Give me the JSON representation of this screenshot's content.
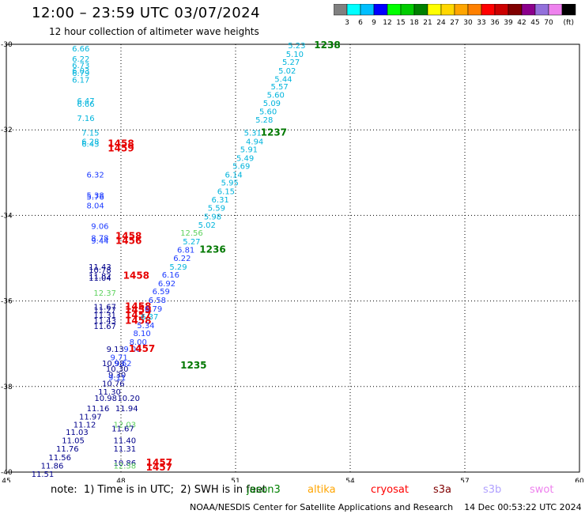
{
  "header": {
    "title": "12:00 – 23:59 UTC 03/07/2024",
    "subtitle": "12 hour collection of altimeter wave heights"
  },
  "colorbar": {
    "ticks": [
      "3",
      "6",
      "9",
      "12",
      "15",
      "18",
      "21",
      "24",
      "27",
      "30",
      "33",
      "36",
      "39",
      "42",
      "45",
      "70"
    ],
    "unit": "(ft)",
    "colors": [
      "#808080",
      "#00ffff",
      "#00bfff",
      "#0000ff",
      "#00ff00",
      "#00cc00",
      "#008000",
      "#ffff00",
      "#ffd700",
      "#ffa500",
      "#ff8000",
      "#ff0000",
      "#cc0000",
      "#800000",
      "#8b008b",
      "#9370db",
      "#ee82ee",
      "#000000"
    ]
  },
  "axes": {
    "x_ticks": [
      "45",
      "48",
      "51",
      "54",
      "57",
      "60"
    ],
    "y_ticks": [
      "-30",
      "-32",
      "-34",
      "-36",
      "-38",
      "-40"
    ]
  },
  "colors": {
    "navy": "#00008b",
    "blue": "#1e3cff",
    "cyan": "#00b4dc",
    "ltgreen": "#5fd25f",
    "dkgreen": "#007800",
    "red": "#e60000"
  },
  "observations": [
    {
      "text": "6.66",
      "lon": 46.95,
      "lat": -30.09,
      "color": "cyan"
    },
    {
      "text": "6.22",
      "lon": 46.95,
      "lat": -30.33,
      "color": "cyan"
    },
    {
      "text": "6.73",
      "lon": 46.95,
      "lat": -30.48,
      "color": "cyan"
    },
    {
      "text": "6.03",
      "lon": 46.95,
      "lat": -30.61,
      "color": "cyan"
    },
    {
      "text": "6.79",
      "lon": 46.95,
      "lat": -30.67,
      "color": "cyan"
    },
    {
      "text": "6.17",
      "lon": 46.95,
      "lat": -30.82,
      "color": "cyan"
    },
    {
      "text": "6.47",
      "lon": 47.08,
      "lat": -31.31,
      "color": "cyan"
    },
    {
      "text": "6.66",
      "lon": 47.08,
      "lat": -31.39,
      "color": "cyan"
    },
    {
      "text": "7.16",
      "lon": 47.08,
      "lat": -31.72,
      "color": "cyan"
    },
    {
      "text": "7.15",
      "lon": 47.2,
      "lat": -32.06,
      "color": "cyan"
    },
    {
      "text": "6.28",
      "lon": 47.2,
      "lat": -32.26,
      "color": "cyan"
    },
    {
      "text": "6.43",
      "lon": 47.2,
      "lat": -32.32,
      "color": "cyan"
    },
    {
      "text": "1458",
      "lon": 48.0,
      "lat": -32.32,
      "color": "red",
      "kind": "pass"
    },
    {
      "text": "1459",
      "lon": 48.0,
      "lat": -32.43,
      "color": "red",
      "kind": "pass"
    },
    {
      "text": "6.32",
      "lon": 47.33,
      "lat": -33.04,
      "color": "blue"
    },
    {
      "text": "5.38",
      "lon": 47.33,
      "lat": -33.52,
      "color": "blue"
    },
    {
      "text": "5.76",
      "lon": 47.33,
      "lat": -33.56,
      "color": "blue"
    },
    {
      "text": "8.04",
      "lon": 47.33,
      "lat": -33.76,
      "color": "blue"
    },
    {
      "text": "9.06",
      "lon": 47.45,
      "lat": -34.24,
      "color": "blue"
    },
    {
      "text": "8.78",
      "lon": 47.45,
      "lat": -34.52,
      "color": "blue"
    },
    {
      "text": "9.44",
      "lon": 47.45,
      "lat": -34.58,
      "color": "blue"
    },
    {
      "text": "1458",
      "lon": 48.2,
      "lat": -34.48,
      "color": "red",
      "kind": "pass"
    },
    {
      "text": "1456",
      "lon": 48.2,
      "lat": -34.59,
      "color": "red",
      "kind": "pass"
    },
    {
      "text": "11.43",
      "lon": 47.45,
      "lat": -35.19,
      "color": "navy"
    },
    {
      "text": "10.78",
      "lon": 47.45,
      "lat": -35.27,
      "color": "navy"
    },
    {
      "text": "11.82",
      "lon": 47.45,
      "lat": -35.41,
      "color": "navy"
    },
    {
      "text": "11.04",
      "lon": 47.45,
      "lat": -35.45,
      "color": "navy"
    },
    {
      "text": "1458",
      "lon": 48.4,
      "lat": -35.41,
      "color": "red",
      "kind": "pass"
    },
    {
      "text": "12.37",
      "lon": 47.58,
      "lat": -35.8,
      "color": "ltgreen"
    },
    {
      "text": "11.67",
      "lon": 47.58,
      "lat": -36.13,
      "color": "navy"
    },
    {
      "text": "11.27",
      "lon": 47.58,
      "lat": -36.2,
      "color": "navy"
    },
    {
      "text": "11.31",
      "lon": 47.58,
      "lat": -36.32,
      "color": "navy"
    },
    {
      "text": "11.43",
      "lon": 47.58,
      "lat": -36.45,
      "color": "navy"
    },
    {
      "text": "11.67",
      "lon": 47.58,
      "lat": -36.58,
      "color": "navy"
    },
    {
      "text": "1458",
      "lon": 48.45,
      "lat": -36.13,
      "color": "red",
      "kind": "pass"
    },
    {
      "text": "1459",
      "lon": 48.45,
      "lat": -36.21,
      "color": "red",
      "kind": "pass"
    },
    {
      "text": "1457",
      "lon": 48.45,
      "lat": -36.33,
      "color": "red",
      "kind": "pass"
    },
    {
      "text": "1458",
      "lon": 48.45,
      "lat": -36.46,
      "color": "red",
      "kind": "pass"
    },
    {
      "text": "9.13",
      "lon": 47.85,
      "lat": -37.12,
      "color": "navy"
    },
    {
      "text": "9.00",
      "lon": 48.3,
      "lat": -37.12,
      "color": "blue"
    },
    {
      "text": "1457",
      "lon": 48.55,
      "lat": -37.12,
      "color": "red",
      "kind": "pass"
    },
    {
      "text": "9.71",
      "lon": 47.95,
      "lat": -37.31,
      "color": "blue"
    },
    {
      "text": "10.98",
      "lon": 47.8,
      "lat": -37.45,
      "color": "navy"
    },
    {
      "text": "9.62",
      "lon": 48.05,
      "lat": -37.45,
      "color": "blue"
    },
    {
      "text": "10.30",
      "lon": 47.9,
      "lat": -37.58,
      "color": "navy"
    },
    {
      "text": "9.30",
      "lon": 47.9,
      "lat": -37.72,
      "color": "navy"
    },
    {
      "text": "9.11",
      "lon": 47.9,
      "lat": -37.78,
      "color": "blue"
    },
    {
      "text": "10.76",
      "lon": 47.8,
      "lat": -37.92,
      "color": "navy"
    },
    {
      "text": "1235",
      "lon": 49.9,
      "lat": -37.5,
      "color": "dkgreen",
      "kind": "pass"
    },
    {
      "text": "11.30",
      "lon": 47.7,
      "lat": -38.11,
      "color": "navy"
    },
    {
      "text": "10.98",
      "lon": 47.6,
      "lat": -38.26,
      "color": "navy"
    },
    {
      "text": "10.20",
      "lon": 48.2,
      "lat": -38.26,
      "color": "navy"
    },
    {
      "text": "11.16",
      "lon": 47.4,
      "lat": -38.5,
      "color": "navy"
    },
    {
      "text": "11.94",
      "lon": 48.15,
      "lat": -38.5,
      "color": "navy"
    },
    {
      "text": "11.97",
      "lon": 47.2,
      "lat": -38.7,
      "color": "navy"
    },
    {
      "text": "11.12",
      "lon": 47.05,
      "lat": -38.88,
      "color": "navy"
    },
    {
      "text": "12.03",
      "lon": 48.1,
      "lat": -38.88,
      "color": "ltgreen"
    },
    {
      "text": "11.67",
      "lon": 48.05,
      "lat": -38.97,
      "color": "navy"
    },
    {
      "text": "11.03",
      "lon": 46.85,
      "lat": -39.06,
      "color": "navy"
    },
    {
      "text": "11.05",
      "lon": 46.75,
      "lat": -39.25,
      "color": "navy"
    },
    {
      "text": "11.40",
      "lon": 48.1,
      "lat": -39.25,
      "color": "navy"
    },
    {
      "text": "11.76",
      "lon": 46.6,
      "lat": -39.45,
      "color": "navy"
    },
    {
      "text": "11.31",
      "lon": 48.1,
      "lat": -39.45,
      "color": "navy"
    },
    {
      "text": "11.56",
      "lon": 46.4,
      "lat": -39.65,
      "color": "navy"
    },
    {
      "text": "11.86",
      "lon": 46.2,
      "lat": -39.84,
      "color": "navy"
    },
    {
      "text": "10.86",
      "lon": 48.1,
      "lat": -39.78,
      "color": "navy"
    },
    {
      "text": "12.38",
      "lon": 48.1,
      "lat": -39.84,
      "color": "ltgreen"
    },
    {
      "text": "1457",
      "lon": 49.0,
      "lat": -39.78,
      "color": "red",
      "kind": "pass"
    },
    {
      "text": "1457",
      "lon": 49.0,
      "lat": -39.89,
      "color": "red",
      "kind": "pass"
    },
    {
      "text": "11.51",
      "lon": 45.95,
      "lat": -40.04,
      "color": "navy"
    },
    {
      "text": "5.23",
      "lon": 52.6,
      "lat": -30.02,
      "color": "cyan"
    },
    {
      "text": "1238",
      "lon": 53.4,
      "lat": -30.02,
      "color": "dkgreen",
      "kind": "pass"
    },
    {
      "text": "5.10",
      "lon": 52.55,
      "lat": -30.22,
      "color": "cyan"
    },
    {
      "text": "5.27",
      "lon": 52.45,
      "lat": -30.41,
      "color": "cyan"
    },
    {
      "text": "5.02",
      "lon": 52.35,
      "lat": -30.61,
      "color": "cyan"
    },
    {
      "text": "5.44",
      "lon": 52.25,
      "lat": -30.8,
      "color": "cyan"
    },
    {
      "text": "5.57",
      "lon": 52.15,
      "lat": -30.98,
      "color": "cyan"
    },
    {
      "text": "5.60",
      "lon": 52.05,
      "lat": -31.17,
      "color": "cyan"
    },
    {
      "text": "5.09",
      "lon": 51.95,
      "lat": -31.37,
      "color": "cyan"
    },
    {
      "text": "5.60",
      "lon": 51.85,
      "lat": -31.56,
      "color": "cyan"
    },
    {
      "text": "5.28",
      "lon": 51.75,
      "lat": -31.76,
      "color": "cyan"
    },
    {
      "text": "5.31",
      "lon": 51.45,
      "lat": -32.06,
      "color": "cyan"
    },
    {
      "text": "1237",
      "lon": 52.0,
      "lat": -32.06,
      "color": "dkgreen",
      "kind": "pass"
    },
    {
      "text": "4.94",
      "lon": 51.5,
      "lat": -32.26,
      "color": "cyan"
    },
    {
      "text": "5.91",
      "lon": 51.35,
      "lat": -32.45,
      "color": "cyan"
    },
    {
      "text": "5.49",
      "lon": 51.25,
      "lat": -32.65,
      "color": "cyan"
    },
    {
      "text": "5.69",
      "lon": 51.15,
      "lat": -32.84,
      "color": "cyan"
    },
    {
      "text": "6.14",
      "lon": 50.95,
      "lat": -33.04,
      "color": "cyan"
    },
    {
      "text": "5.95",
      "lon": 50.85,
      "lat": -33.23,
      "color": "cyan"
    },
    {
      "text": "6.15",
      "lon": 50.75,
      "lat": -33.43,
      "color": "cyan"
    },
    {
      "text": "6.31",
      "lon": 50.6,
      "lat": -33.62,
      "color": "cyan"
    },
    {
      "text": "5.59",
      "lon": 50.5,
      "lat": -33.82,
      "color": "cyan"
    },
    {
      "text": "5.98",
      "lon": 50.4,
      "lat": -34.02,
      "color": "cyan"
    },
    {
      "text": "5.02",
      "lon": 50.25,
      "lat": -34.21,
      "color": "cyan"
    },
    {
      "text": "12.56",
      "lon": 49.85,
      "lat": -34.4,
      "color": "ltgreen"
    },
    {
      "text": "5.27",
      "lon": 49.85,
      "lat": -34.6,
      "color": "cyan"
    },
    {
      "text": "6.81",
      "lon": 49.7,
      "lat": -34.8,
      "color": "blue"
    },
    {
      "text": "1236",
      "lon": 50.4,
      "lat": -34.8,
      "color": "dkgreen",
      "kind": "pass"
    },
    {
      "text": "6.22",
      "lon": 49.6,
      "lat": -34.99,
      "color": "blue"
    },
    {
      "text": "5.29",
      "lon": 49.5,
      "lat": -35.19,
      "color": "cyan"
    },
    {
      "text": "6.16",
      "lon": 49.3,
      "lat": -35.38,
      "color": "blue"
    },
    {
      "text": "6.92",
      "lon": 49.2,
      "lat": -35.58,
      "color": "blue"
    },
    {
      "text": "6.59",
      "lon": 49.05,
      "lat": -35.77,
      "color": "blue"
    },
    {
      "text": "6.58",
      "lon": 48.95,
      "lat": -35.97,
      "color": "blue"
    },
    {
      "text": "6.79",
      "lon": 48.85,
      "lat": -36.17,
      "color": "blue"
    },
    {
      "text": "6.37",
      "lon": 48.75,
      "lat": -36.36,
      "color": "cyan"
    },
    {
      "text": "5.34",
      "lon": 48.65,
      "lat": -36.56,
      "color": "blue"
    },
    {
      "text": "8.10",
      "lon": 48.55,
      "lat": -36.75,
      "color": "blue"
    },
    {
      "text": "8.00",
      "lon": 48.45,
      "lat": -36.95,
      "color": "blue"
    }
  ],
  "note": {
    "prefix": "note:  1) Time is in UTC;  2) SWH is in feet",
    "satellites": [
      {
        "name": "jason3",
        "color": "#008000"
      },
      {
        "name": "altika",
        "color": "#ffa500"
      },
      {
        "name": "cryosat",
        "color": "#ff0000"
      },
      {
        "name": "s3a",
        "color": "#800000"
      },
      {
        "name": "s3b",
        "color": "#b0a0ff"
      },
      {
        "name": "swot",
        "color": "#ee82ee"
      }
    ]
  },
  "footer": "NOAA/NESDIS Center for Satellite Applications and Research    14 Dec 00:53:22 UTC 2024"
}
